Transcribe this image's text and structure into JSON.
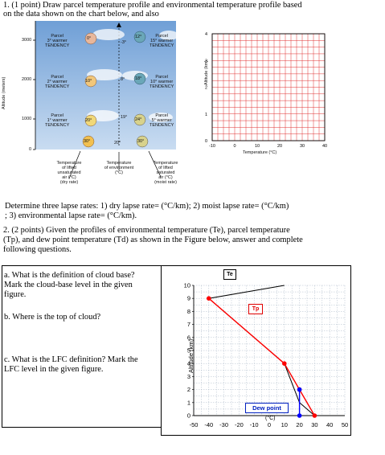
{
  "q1": {
    "line1": "1. (1 point) Draw parcel temperature profile and environmental temperature profile based",
    "line2": "on the data shown on the chart below, and also",
    "det1": "Determine three lapse rates: 1) dry lapse rate=   (°C/km);  2) moist lapse rate=  (°C/km)",
    "det2": "; 3) environmental lapse rate=  (°C/km)."
  },
  "balloon": {
    "yaxis": "Altitude (meters)",
    "yticks": [
      "3000",
      "2000",
      "1000",
      "0"
    ],
    "left_p": [
      [
        "Parcel",
        "3° warmer",
        "TENDENCY"
      ],
      [
        "Parcel",
        "2° warmer",
        "TENDENCY"
      ],
      [
        "Parcel",
        "1° warmer",
        "TENDENCY"
      ]
    ],
    "right_p": [
      [
        "Parcel",
        "15° warmer",
        "TENDENCY"
      ],
      [
        "Parcel",
        "10° warmer",
        "TENDENCY"
      ],
      [
        "Parcel",
        "5° warmer",
        "TENDENCY"
      ]
    ],
    "left_circles": [
      "0°",
      "10°",
      "20°"
    ],
    "mid_temps": [
      "-3°",
      "8°",
      "19°"
    ],
    "right_circles": [
      "12°",
      "18°",
      "24°"
    ],
    "bottom": {
      "a": "30°",
      "b": "20°",
      "c": "30°"
    },
    "cap_left": [
      "Temperature",
      "of lifted",
      "unsaturated",
      "air (°C)",
      "(dry rate)"
    ],
    "cap_mid": [
      "Temperature",
      "of environment",
      "(°C)"
    ],
    "cap_right": [
      "Temperature",
      "of lifted",
      "saturated",
      "air (°C)",
      "(moist rate)"
    ]
  },
  "grid1": {
    "ylabel": "Altitude (km)",
    "yticks": [
      "4",
      "3",
      "2",
      "1",
      "0"
    ],
    "xticks": [
      "-10",
      "0",
      "10",
      "20",
      "30",
      "40"
    ],
    "xlabel": "Temperature (°C)"
  },
  "q2": {
    "line1": "2. (2 points) Given the profiles of environmental temperature (Te), parcel temperature",
    "line2": "(Tp), and dew point temperature (Td) as shown in the Figure below, answer and complete",
    "line3": "following questions.",
    "a1": "a.  What is the definition of cloud base?",
    "a2": "Mark the cloud-base level in the given",
    "a3": "figure.",
    "b": "b.  Where is the top of cloud?",
    "c1": "c.  What is the LFC definition? Mark the",
    "c2": "LFC level in the given figure."
  },
  "chart_data": {
    "type": "line",
    "xlabel": "(°C)",
    "ylabel": "Altitude (km)",
    "xlim": [
      -50,
      50
    ],
    "ylim": [
      0,
      10
    ],
    "xticks": [
      "-50",
      "-40",
      "-30",
      "-20",
      "-10",
      "0",
      "10",
      "20",
      "30",
      "40",
      "50"
    ],
    "yticks": [
      "0",
      "1",
      "2",
      "3",
      "4",
      "5",
      "6",
      "7",
      "8",
      "9",
      "10"
    ],
    "grid": true,
    "annotations": [
      "Te",
      "Tp",
      "Dew point"
    ],
    "series": [
      {
        "name": "Te",
        "color": "#000000",
        "x": [
          30,
          20,
          10,
          -40,
          10
        ],
        "y": [
          0,
          1,
          4,
          9,
          10
        ]
      },
      {
        "name": "Tp",
        "color": "#ff0000",
        "x": [
          30,
          20,
          10,
          -40
        ],
        "y": [
          0,
          2,
          4,
          9
        ]
      },
      {
        "name": "Dew point",
        "color": "#0000ff",
        "x": [
          20,
          20
        ],
        "y": [
          0,
          2
        ]
      }
    ]
  }
}
